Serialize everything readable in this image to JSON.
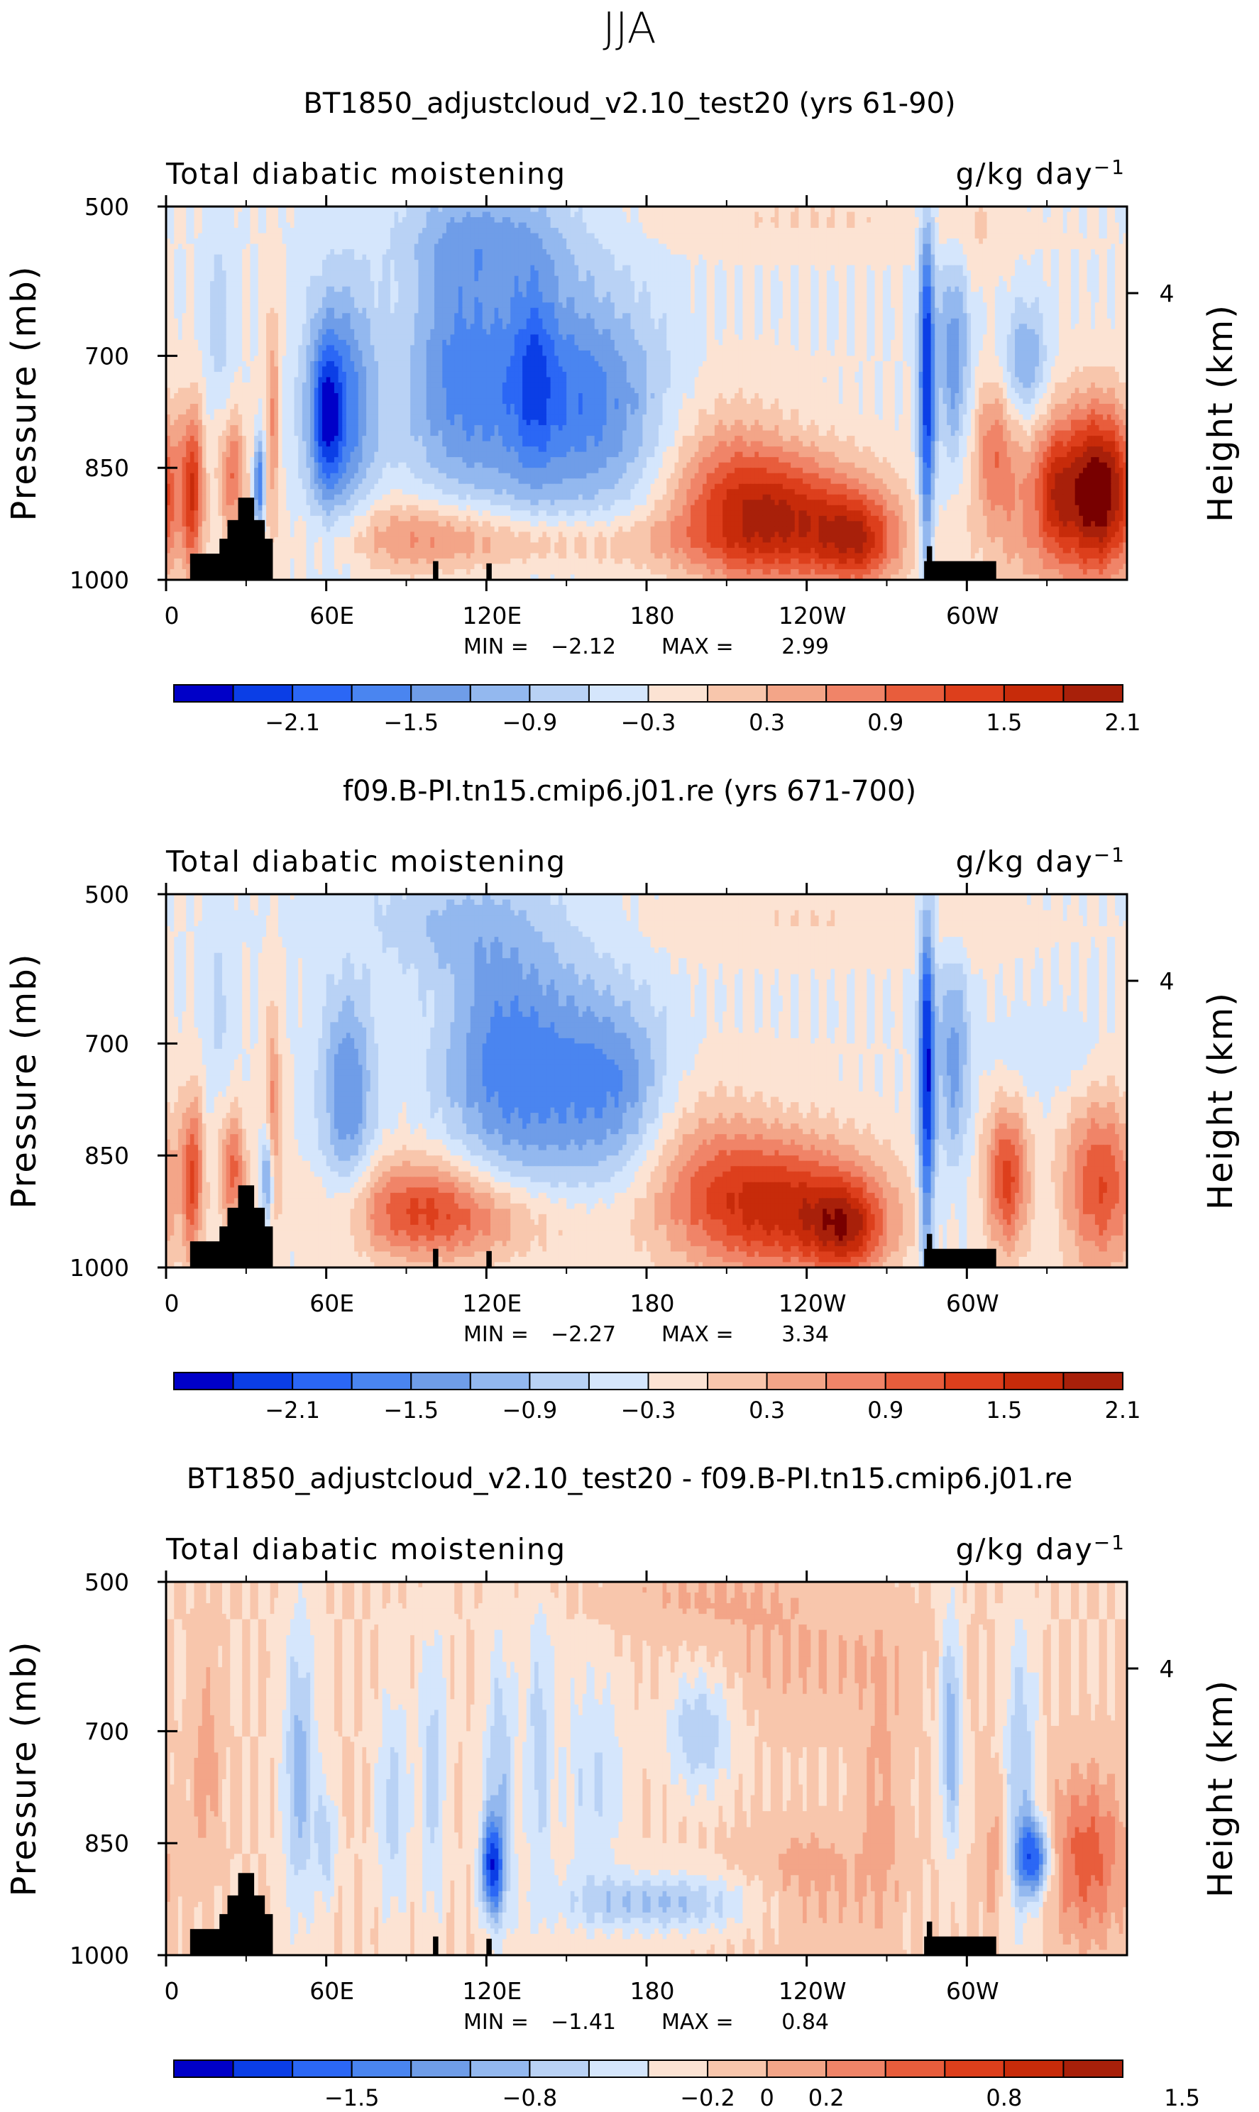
{
  "figure_title": "JJA",
  "colors": {
    "blue_9": "#00008c",
    "blue_8": "#0000c8",
    "blue_7": "#0b3ee6",
    "blue_6": "#2b67f5",
    "blue_5": "#4a85f0",
    "blue_4": "#6f9de8",
    "blue_3": "#93b8ef",
    "blue_2": "#b9d2f5",
    "blue_1": "#d5e6fc",
    "red_1": "#fce3d3",
    "red_2": "#f8c6ac",
    "red_3": "#f3a588",
    "red_4": "#f08468",
    "red_5": "#e85d3c",
    "red_6": "#dd3f1c",
    "red_7": "#c72b0a",
    "red_8": "#a8200a",
    "red_9": "#780000",
    "topography": "#000000"
  },
  "chart_data": [
    {
      "type": "heatmap",
      "title": "BT1850_adjustcloud_v2.10_test20 (yrs 61-90)",
      "left_label": "Total diabatic moistening",
      "units": "g/kg day",
      "units_exponent": "−1",
      "ylabel": "Pressure (mb)",
      "ylabel_right": "Height (km)",
      "ylim": [
        1000,
        500
      ],
      "y_ticks": [
        "500",
        "700",
        "850",
        "1000"
      ],
      "y_tick_values": [
        500,
        700,
        850,
        1000
      ],
      "right_ticks": [
        "4"
      ],
      "right_tick_values": [
        616
      ],
      "xlim": [
        0,
        360
      ],
      "x_ticks": [
        "0",
        "60E",
        "120E",
        "180",
        "120W",
        "60W"
      ],
      "x_tick_values": [
        0,
        60,
        120,
        180,
        240,
        300
      ],
      "min_label": "MIN =",
      "min_value": "−2.12",
      "max_label": "MAX =",
      "max_value": "2.99",
      "colorbar_levels": [
        -2.4,
        -2.1,
        -1.8,
        -1.5,
        -1.2,
        -0.9,
        -0.6,
        -0.3,
        0,
        0.3,
        0.6,
        0.9,
        1.2,
        1.5,
        1.8,
        2.1,
        2.4
      ],
      "colorbar_labels": [
        "−2.1",
        "−1.5",
        "−0.9",
        "−0.3",
        "0.3",
        "0.9",
        "1.5",
        "2.1"
      ],
      "colorbar_label_positions": [
        1,
        3,
        5,
        7,
        9,
        11,
        13,
        15
      ],
      "features": [
        {
          "lon": 10,
          "p": 880,
          "rl": 4,
          "rp": 110,
          "v": 1.5
        },
        {
          "lon": 25,
          "p": 860,
          "rl": 5,
          "rp": 80,
          "v": 1.2
        },
        {
          "lon": 40,
          "p": 780,
          "rl": 3,
          "rp": 160,
          "v": 0.9
        },
        {
          "lon": 35,
          "p": 870,
          "rl": 2,
          "rp": 60,
          "v": -1.6
        },
        {
          "lon": 20,
          "p": 650,
          "rl": 5,
          "rp": 120,
          "v": -0.5
        },
        {
          "lon": 65,
          "p": 770,
          "rl": 13,
          "rp": 160,
          "v": -1.5
        },
        {
          "lon": 60,
          "p": 780,
          "rl": 5,
          "rp": 100,
          "v": -1.1
        },
        {
          "lon": 95,
          "p": 940,
          "rl": 35,
          "rp": 55,
          "v": 0.8
        },
        {
          "lon": 105,
          "p": 700,
          "rl": 15,
          "rp": 170,
          "v": -0.5
        },
        {
          "lon": 130,
          "p": 740,
          "rl": 35,
          "rp": 180,
          "v": -1.3
        },
        {
          "lon": 138,
          "p": 720,
          "rl": 7,
          "rp": 130,
          "v": -0.6
        },
        {
          "lon": 165,
          "p": 770,
          "rl": 25,
          "rp": 140,
          "v": -0.8
        },
        {
          "lon": 150,
          "p": 950,
          "rl": 60,
          "rp": 40,
          "v": 0.6
        },
        {
          "lon": 120,
          "p": 540,
          "rl": 30,
          "rp": 70,
          "v": -0.7
        },
        {
          "lon": 230,
          "p": 920,
          "rl": 35,
          "rp": 90,
          "v": 2.0
        },
        {
          "lon": 260,
          "p": 950,
          "rl": 15,
          "rp": 60,
          "v": 1.3
        },
        {
          "lon": 210,
          "p": 850,
          "rl": 22,
          "rp": 110,
          "v": 0.6
        },
        {
          "lon": 285,
          "p": 740,
          "rl": 3,
          "rp": 240,
          "v": -2.1
        },
        {
          "lon": 295,
          "p": 700,
          "rl": 6,
          "rp": 150,
          "v": -1.1
        },
        {
          "lon": 300,
          "p": 540,
          "rl": 15,
          "rp": 70,
          "v": 0.3
        },
        {
          "lon": 310,
          "p": 820,
          "rl": 7,
          "rp": 90,
          "v": 0.8
        },
        {
          "lon": 322,
          "p": 710,
          "rl": 8,
          "rp": 80,
          "v": -1.0
        },
        {
          "lon": 333,
          "p": 880,
          "rl": 6,
          "rp": 80,
          "v": 0.7
        },
        {
          "lon": 350,
          "p": 880,
          "rl": 14,
          "rp": 110,
          "v": 2.3
        },
        {
          "lon": 330,
          "p": 900,
          "rl": 25,
          "rp": 130,
          "v": 1.0
        },
        {
          "lon": 240,
          "p": 520,
          "rl": 60,
          "rp": 40,
          "v": 0.3
        }
      ]
    },
    {
      "type": "heatmap",
      "title": "f09.B-PI.tn15.cmip6.j01.re (yrs 671-700)",
      "left_label": "Total diabatic moistening",
      "units": "g/kg day",
      "units_exponent": "−1",
      "ylabel": "Pressure (mb)",
      "ylabel_right": "Height (km)",
      "ylim": [
        1000,
        500
      ],
      "y_ticks": [
        "500",
        "700",
        "850",
        "1000"
      ],
      "y_tick_values": [
        500,
        700,
        850,
        1000
      ],
      "right_ticks": [
        "4"
      ],
      "right_tick_values": [
        616
      ],
      "xlim": [
        0,
        360
      ],
      "x_ticks": [
        "0",
        "60E",
        "120E",
        "180",
        "120W",
        "60W"
      ],
      "x_tick_values": [
        0,
        60,
        120,
        180,
        240,
        300
      ],
      "min_label": "MIN =",
      "min_value": "−2.27",
      "max_label": "MAX =",
      "max_value": "3.34",
      "colorbar_levels": [
        -2.4,
        -2.1,
        -1.8,
        -1.5,
        -1.2,
        -0.9,
        -0.6,
        -0.3,
        0,
        0.3,
        0.6,
        0.9,
        1.2,
        1.5,
        1.8,
        2.1,
        2.4
      ],
      "colorbar_labels": [
        "−2.1",
        "−1.5",
        "−0.9",
        "−0.3",
        "0.3",
        "0.9",
        "1.5",
        "2.1"
      ],
      "colorbar_label_positions": [
        1,
        3,
        5,
        7,
        9,
        11,
        13,
        15
      ],
      "features": [
        {
          "lon": 10,
          "p": 880,
          "rl": 4,
          "rp": 110,
          "v": 1.4
        },
        {
          "lon": 25,
          "p": 870,
          "rl": 5,
          "rp": 80,
          "v": 1.3
        },
        {
          "lon": 40,
          "p": 790,
          "rl": 3,
          "rp": 160,
          "v": 0.9
        },
        {
          "lon": 38,
          "p": 880,
          "rl": 2,
          "rp": 60,
          "v": -1.4
        },
        {
          "lon": 20,
          "p": 650,
          "rl": 5,
          "rp": 120,
          "v": -0.4
        },
        {
          "lon": 68,
          "p": 770,
          "rl": 10,
          "rp": 150,
          "v": -1.2
        },
        {
          "lon": 95,
          "p": 920,
          "rl": 30,
          "rp": 70,
          "v": 1.3
        },
        {
          "lon": 120,
          "p": 700,
          "rl": 20,
          "rp": 180,
          "v": -0.6
        },
        {
          "lon": 140,
          "p": 740,
          "rl": 28,
          "rp": 170,
          "v": -1.1
        },
        {
          "lon": 170,
          "p": 760,
          "rl": 20,
          "rp": 120,
          "v": -0.9
        },
        {
          "lon": 125,
          "p": 940,
          "rl": 40,
          "rp": 60,
          "v": 0.6
        },
        {
          "lon": 100,
          "p": 540,
          "rl": 40,
          "rp": 70,
          "v": -0.5
        },
        {
          "lon": 70,
          "p": 560,
          "rl": 15,
          "rp": 60,
          "v": 0.2
        },
        {
          "lon": 230,
          "p": 920,
          "rl": 38,
          "rp": 95,
          "v": 1.9
        },
        {
          "lon": 255,
          "p": 950,
          "rl": 14,
          "rp": 60,
          "v": 1.3
        },
        {
          "lon": 200,
          "p": 850,
          "rl": 25,
          "rp": 110,
          "v": 0.5
        },
        {
          "lon": 285,
          "p": 750,
          "rl": 3,
          "rp": 240,
          "v": -2.2
        },
        {
          "lon": 295,
          "p": 720,
          "rl": 6,
          "rp": 150,
          "v": -1.0
        },
        {
          "lon": 240,
          "p": 540,
          "rl": 60,
          "rp": 50,
          "v": 0.3
        },
        {
          "lon": 315,
          "p": 880,
          "rl": 8,
          "rp": 100,
          "v": 1.6
        },
        {
          "lon": 350,
          "p": 890,
          "rl": 14,
          "rp": 120,
          "v": 1.5
        },
        {
          "lon": 330,
          "p": 720,
          "rl": 20,
          "rp": 60,
          "v": -0.3
        },
        {
          "lon": 300,
          "p": 540,
          "rl": 15,
          "rp": 60,
          "v": 0.2
        }
      ]
    },
    {
      "type": "heatmap",
      "title": "BT1850_adjustcloud_v2.10_test20 - f09.B-PI.tn15.cmip6.j01.re",
      "left_label": "Total diabatic moistening",
      "units": "g/kg day",
      "units_exponent": "−1",
      "ylabel": "Pressure (mb)",
      "ylabel_right": "Height (km)",
      "ylim": [
        1000,
        500
      ],
      "y_ticks": [
        "500",
        "700",
        "850",
        "1000"
      ],
      "y_tick_values": [
        500,
        700,
        850,
        1000
      ],
      "right_ticks": [
        "4"
      ],
      "right_tick_values": [
        616
      ],
      "xlim": [
        0,
        360
      ],
      "x_ticks": [
        "0",
        "60E",
        "120E",
        "180",
        "120W",
        "60W"
      ],
      "x_tick_values": [
        0,
        60,
        120,
        180,
        240,
        300
      ],
      "min_label": "MIN =",
      "min_value": "−1.41",
      "max_label": "MAX =",
      "max_value": "0.84",
      "colorbar_levels": [
        -2.0,
        -1.75,
        -1.5,
        -1.2,
        -1.0,
        -0.8,
        -0.6,
        -0.4,
        -0.2,
        0,
        0.2,
        0.4,
        0.6,
        0.8,
        1.0,
        1.2,
        1.5
      ],
      "colorbar_labels": [
        "−1.5",
        "−0.8",
        "−0.2",
        "0",
        "0.2",
        "0.8",
        "1.5"
      ],
      "colorbar_label_positions": [
        2,
        5,
        8,
        9,
        10,
        13,
        16
      ],
      "features": [
        {
          "lon": 50,
          "p": 750,
          "rl": 6,
          "rp": 200,
          "v": -0.7
        },
        {
          "lon": 60,
          "p": 850,
          "rl": 4,
          "rp": 80,
          "v": -0.5
        },
        {
          "lon": 15,
          "p": 750,
          "rl": 5,
          "rp": 150,
          "v": 0.3
        },
        {
          "lon": 85,
          "p": 800,
          "rl": 6,
          "rp": 150,
          "v": -0.5
        },
        {
          "lon": 100,
          "p": 750,
          "rl": 5,
          "rp": 200,
          "v": -0.5
        },
        {
          "lon": 122,
          "p": 880,
          "rl": 4,
          "rp": 60,
          "v": -1.4
        },
        {
          "lon": 125,
          "p": 780,
          "rl": 6,
          "rp": 200,
          "v": -0.6
        },
        {
          "lon": 140,
          "p": 720,
          "rl": 5,
          "rp": 200,
          "v": -0.5
        },
        {
          "lon": 185,
          "p": 930,
          "rl": 40,
          "rp": 40,
          "v": -0.6
        },
        {
          "lon": 200,
          "p": 700,
          "rl": 12,
          "rp": 80,
          "v": -0.6
        },
        {
          "lon": 160,
          "p": 760,
          "rl": 12,
          "rp": 150,
          "v": -0.4
        },
        {
          "lon": 200,
          "p": 520,
          "rl": 40,
          "rp": 50,
          "v": 0.2
        },
        {
          "lon": 240,
          "p": 600,
          "rl": 40,
          "rp": 80,
          "v": 0.2
        },
        {
          "lon": 240,
          "p": 900,
          "rl": 25,
          "rp": 80,
          "v": 0.3
        },
        {
          "lon": 294,
          "p": 700,
          "rl": 4,
          "rp": 150,
          "v": -0.8
        },
        {
          "lon": 325,
          "p": 870,
          "rl": 6,
          "rp": 50,
          "v": -1.35
        },
        {
          "lon": 320,
          "p": 760,
          "rl": 6,
          "rp": 200,
          "v": -0.6
        },
        {
          "lon": 345,
          "p": 870,
          "rl": 14,
          "rp": 110,
          "v": 0.7
        },
        {
          "lon": 310,
          "p": 860,
          "rl": 5,
          "rp": 100,
          "v": 0.3
        },
        {
          "lon": 268,
          "p": 780,
          "rl": 8,
          "rp": 200,
          "v": 0.25
        }
      ]
    }
  ],
  "topography": [
    {
      "lon0": 9,
      "lon1": 34,
      "p": 965
    },
    {
      "lon0": 20,
      "lon1": 34,
      "p": 945
    },
    {
      "lon0": 23,
      "lon1": 33,
      "p": 920
    },
    {
      "lon0": 27,
      "lon1": 33,
      "p": 890
    },
    {
      "lon0": 30,
      "lon1": 37,
      "p": 920
    },
    {
      "lon0": 34,
      "lon1": 40,
      "p": 945
    },
    {
      "lon0": 100,
      "lon1": 102,
      "p": 975
    },
    {
      "lon0": 120,
      "lon1": 122,
      "p": 978
    },
    {
      "lon0": 284,
      "lon1": 311,
      "p": 975
    },
    {
      "lon0": 285,
      "lon1": 287,
      "p": 955
    }
  ]
}
